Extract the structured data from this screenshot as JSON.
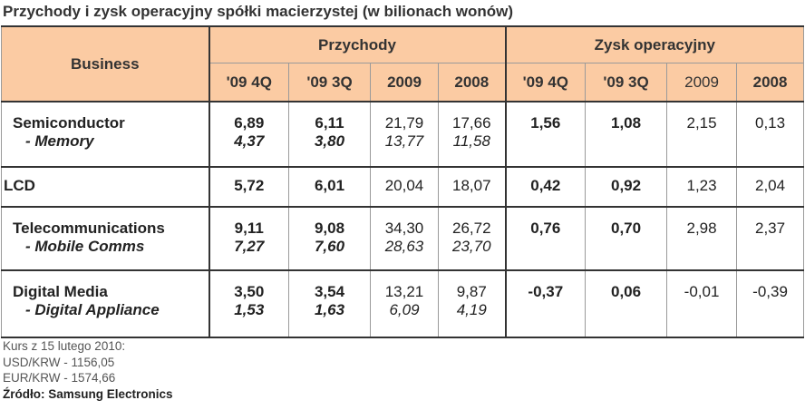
{
  "title": "Przychody i zysk operacyjny spółki macierzystej (w bilionach wonów)",
  "table": {
    "header": {
      "business": "Business",
      "groups": [
        "Przychody",
        "Zysk operacyjny"
      ],
      "periods": [
        "'09 4Q",
        "'09 3Q",
        "2009",
        "2008",
        "'09 4Q",
        "'09 3Q",
        "2009",
        "2008"
      ]
    },
    "rows": [
      {
        "label": "Semiconductor",
        "sublabel": "- Memory",
        "values": [
          "6,89",
          "6,11",
          "21,79",
          "17,66",
          "1,56",
          "1,08",
          "2,15",
          "0,13"
        ],
        "subvalues": [
          "4,37",
          "3,80",
          "13,77",
          "11,58"
        ]
      },
      {
        "label": "LCD",
        "values": [
          "5,72",
          "6,01",
          "20,04",
          "18,07",
          "0,42",
          "0,92",
          "1,23",
          "2,04"
        ]
      },
      {
        "label": "Telecommunications",
        "sublabel": "- Mobile Comms",
        "values": [
          "9,11",
          "9,08",
          "34,30",
          "26,72",
          "0,76",
          "0,70",
          "2,98",
          "2,37"
        ],
        "subvalues": [
          "7,27",
          "7,60",
          "28,63",
          "23,70"
        ]
      },
      {
        "label": "Digital Media",
        "sublabel": "- Digital Appliance",
        "values": [
          "3,50",
          "3,54",
          "13,21",
          "9,87",
          "-0,37",
          "0,06",
          "-0,01",
          "-0,39"
        ],
        "subvalues": [
          "1,53",
          "1,63",
          "6,09",
          "4,19"
        ]
      }
    ]
  },
  "notes": [
    "Kurs z 15 lutego 2010:",
    "USD/KRW - 1156,05",
    "EUR/KRW - 1574,66"
  ],
  "source": "Źródło: Samsung Electronics"
}
